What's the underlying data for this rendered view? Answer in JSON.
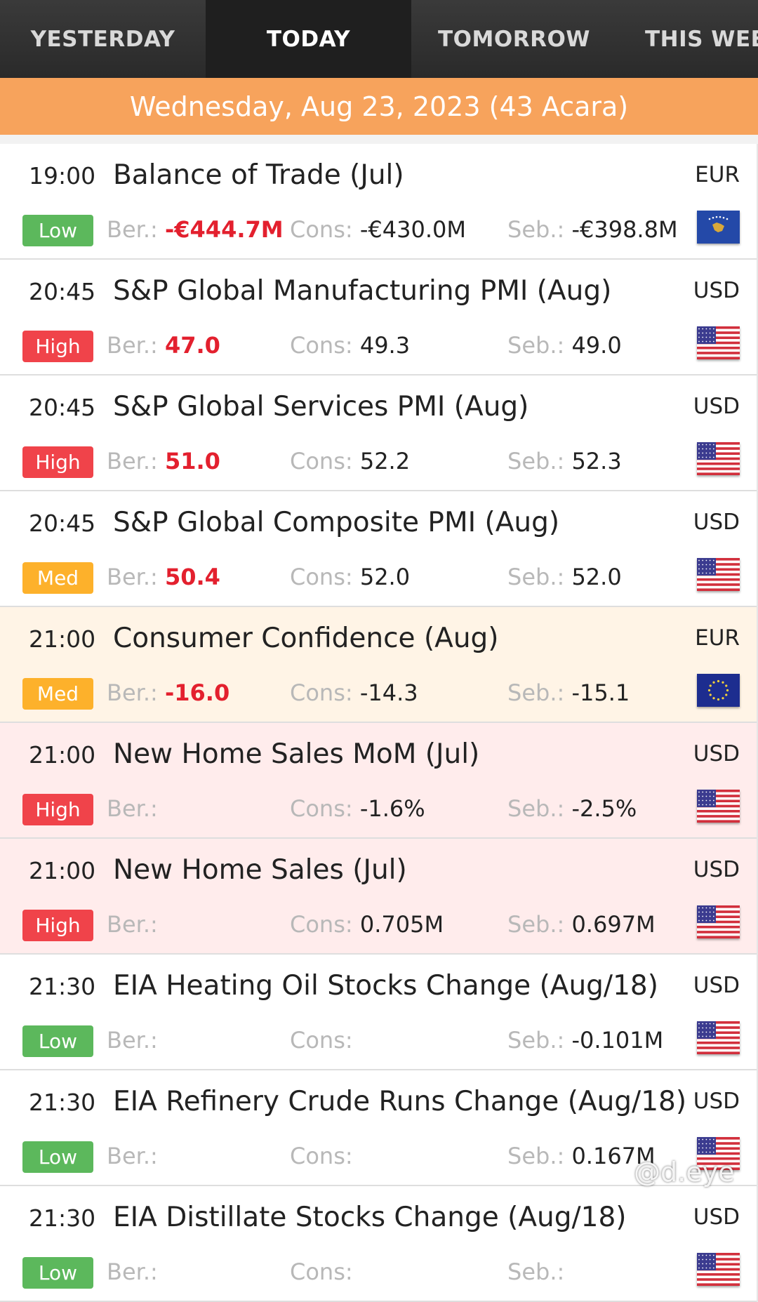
{
  "tabs": [
    {
      "label": "YESTERDAY",
      "active": false
    },
    {
      "label": "TODAY",
      "active": true
    },
    {
      "label": "TOMORROW",
      "active": false
    },
    {
      "label": "THIS WEE",
      "active": false
    }
  ],
  "date_banner": "Wednesday, Aug 23, 2023 (43 Acara)",
  "labels": {
    "actual": "Ber.:",
    "consensus": "Cons:",
    "previous": "Seb.:"
  },
  "events": [
    {
      "time": "19:00",
      "title": "Balance of Trade (Jul)",
      "currency": "EUR",
      "impact": "Low",
      "actual": "-€444.7M",
      "consensus": "-€430.0M",
      "previous": "-€398.8M",
      "flag": "kosovo-flag",
      "tint": "none"
    },
    {
      "time": "20:45",
      "title": "S&P Global Manufacturing PMI (Aug)",
      "currency": "USD",
      "impact": "High",
      "actual": "47.0",
      "consensus": "49.3",
      "previous": "49.0",
      "flag": "us-flag",
      "tint": "none"
    },
    {
      "time": "20:45",
      "title": "S&P Global Services PMI (Aug)",
      "currency": "USD",
      "impact": "High",
      "actual": "51.0",
      "consensus": "52.2",
      "previous": "52.3",
      "flag": "us-flag",
      "tint": "none"
    },
    {
      "time": "20:45",
      "title": "S&P Global Composite PMI (Aug)",
      "currency": "USD",
      "impact": "Med",
      "actual": "50.4",
      "consensus": "52.0",
      "previous": "52.0",
      "flag": "us-flag",
      "tint": "none"
    },
    {
      "time": "21:00",
      "title": "Consumer Confidence (Aug)",
      "currency": "EUR",
      "impact": "Med",
      "actual": "-16.0",
      "consensus": "-14.3",
      "previous": "-15.1",
      "flag": "eu-flag",
      "tint": "orange"
    },
    {
      "time": "21:00",
      "title": "New Home Sales MoM (Jul)",
      "currency": "USD",
      "impact": "High",
      "actual": "",
      "consensus": "-1.6%",
      "previous": "-2.5%",
      "flag": "us-flag",
      "tint": "red"
    },
    {
      "time": "21:00",
      "title": "New Home Sales (Jul)",
      "currency": "USD",
      "impact": "High",
      "actual": "",
      "consensus": "0.705M",
      "previous": "0.697M",
      "flag": "us-flag",
      "tint": "red"
    },
    {
      "time": "21:30",
      "title": "EIA Heating Oil Stocks Change (Aug/18)",
      "currency": "USD",
      "impact": "Low",
      "actual": "",
      "consensus": "",
      "previous": "-0.101M",
      "flag": "us-flag",
      "tint": "none"
    },
    {
      "time": "21:30",
      "title": "EIA Refinery Crude Runs Change (Aug/18)",
      "currency": "USD",
      "impact": "Low",
      "actual": "",
      "consensus": "",
      "previous": "0.167M",
      "flag": "us-flag",
      "tint": "none"
    },
    {
      "time": "21:30",
      "title": "EIA Distillate Stocks Change (Aug/18)",
      "currency": "USD",
      "impact": "Low",
      "actual": "",
      "consensus": "",
      "previous": "",
      "flag": "us-flag",
      "tint": "none"
    }
  ],
  "watermark": "@d.eye",
  "colors": {
    "tab_bar": "#2a2a2a",
    "banner": "#f7a35c",
    "low": "#5cb85c",
    "high": "#f0434a",
    "med": "#fdb12b",
    "actual_value": "#e3202e"
  }
}
